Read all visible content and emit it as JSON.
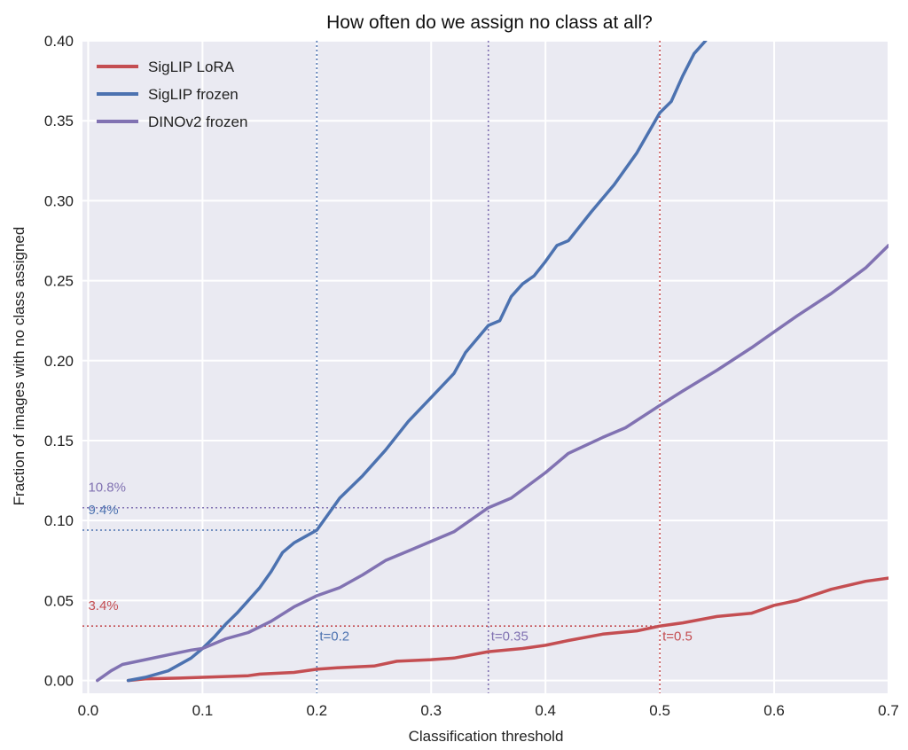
{
  "chart_data": {
    "type": "line",
    "title": "How often do we assign no class at all?",
    "xlabel": "Classification threshold",
    "ylabel": "Fraction of images with no class assigned",
    "xlim": [
      -0.005,
      0.7
    ],
    "ylim": [
      -0.008,
      0.4
    ],
    "xticks": [
      0.0,
      0.1,
      0.2,
      0.3,
      0.4,
      0.5,
      0.6,
      0.7
    ],
    "xtick_labels": [
      "0.0",
      "0.1",
      "0.2",
      "0.3",
      "0.4",
      "0.5",
      "0.6",
      "0.7"
    ],
    "yticks": [
      0.0,
      0.05,
      0.1,
      0.15,
      0.2,
      0.25,
      0.3,
      0.35,
      0.4
    ],
    "ytick_labels": [
      "0.00",
      "0.05",
      "0.10",
      "0.15",
      "0.20",
      "0.25",
      "0.30",
      "0.35",
      "0.40"
    ],
    "grid": true,
    "legend_position": "top-left",
    "series": [
      {
        "name": "SigLIP LoRA",
        "color": "#c44e52",
        "points": [
          [
            0.035,
            0.0
          ],
          [
            0.05,
            0.001
          ],
          [
            0.08,
            0.0015
          ],
          [
            0.1,
            0.002
          ],
          [
            0.12,
            0.0025
          ],
          [
            0.14,
            0.003
          ],
          [
            0.15,
            0.004
          ],
          [
            0.18,
            0.005
          ],
          [
            0.2,
            0.007
          ],
          [
            0.22,
            0.008
          ],
          [
            0.25,
            0.009
          ],
          [
            0.27,
            0.012
          ],
          [
            0.3,
            0.013
          ],
          [
            0.32,
            0.014
          ],
          [
            0.35,
            0.018
          ],
          [
            0.38,
            0.02
          ],
          [
            0.4,
            0.022
          ],
          [
            0.42,
            0.025
          ],
          [
            0.45,
            0.029
          ],
          [
            0.48,
            0.031
          ],
          [
            0.5,
            0.034
          ],
          [
            0.52,
            0.036
          ],
          [
            0.55,
            0.04
          ],
          [
            0.58,
            0.042
          ],
          [
            0.6,
            0.047
          ],
          [
            0.62,
            0.05
          ],
          [
            0.65,
            0.057
          ],
          [
            0.68,
            0.062
          ],
          [
            0.7,
            0.064
          ]
        ]
      },
      {
        "name": "SigLIP frozen",
        "color": "#4c72b0",
        "points": [
          [
            0.035,
            0.0
          ],
          [
            0.05,
            0.002
          ],
          [
            0.07,
            0.006
          ],
          [
            0.09,
            0.014
          ],
          [
            0.1,
            0.02
          ],
          [
            0.11,
            0.027
          ],
          [
            0.12,
            0.035
          ],
          [
            0.13,
            0.042
          ],
          [
            0.14,
            0.05
          ],
          [
            0.15,
            0.058
          ],
          [
            0.16,
            0.068
          ],
          [
            0.17,
            0.08
          ],
          [
            0.18,
            0.086
          ],
          [
            0.19,
            0.09
          ],
          [
            0.2,
            0.094
          ],
          [
            0.21,
            0.104
          ],
          [
            0.22,
            0.114
          ],
          [
            0.24,
            0.128
          ],
          [
            0.26,
            0.144
          ],
          [
            0.28,
            0.162
          ],
          [
            0.3,
            0.177
          ],
          [
            0.32,
            0.192
          ],
          [
            0.33,
            0.205
          ],
          [
            0.35,
            0.222
          ],
          [
            0.36,
            0.225
          ],
          [
            0.37,
            0.24
          ],
          [
            0.38,
            0.248
          ],
          [
            0.39,
            0.253
          ],
          [
            0.4,
            0.262
          ],
          [
            0.41,
            0.272
          ],
          [
            0.42,
            0.275
          ],
          [
            0.44,
            0.293
          ],
          [
            0.46,
            0.31
          ],
          [
            0.48,
            0.33
          ],
          [
            0.5,
            0.355
          ],
          [
            0.51,
            0.362
          ],
          [
            0.52,
            0.378
          ],
          [
            0.53,
            0.392
          ],
          [
            0.54,
            0.4
          ]
        ]
      },
      {
        "name": "DINOv2 frozen",
        "color": "#8172b2",
        "points": [
          [
            0.008,
            0.0
          ],
          [
            0.02,
            0.006
          ],
          [
            0.03,
            0.01
          ],
          [
            0.05,
            0.013
          ],
          [
            0.07,
            0.016
          ],
          [
            0.09,
            0.019
          ],
          [
            0.1,
            0.02
          ],
          [
            0.12,
            0.026
          ],
          [
            0.14,
            0.03
          ],
          [
            0.16,
            0.037
          ],
          [
            0.18,
            0.046
          ],
          [
            0.2,
            0.053
          ],
          [
            0.22,
            0.058
          ],
          [
            0.24,
            0.066
          ],
          [
            0.26,
            0.075
          ],
          [
            0.28,
            0.081
          ],
          [
            0.3,
            0.087
          ],
          [
            0.32,
            0.093
          ],
          [
            0.35,
            0.108
          ],
          [
            0.37,
            0.114
          ],
          [
            0.4,
            0.13
          ],
          [
            0.42,
            0.142
          ],
          [
            0.45,
            0.152
          ],
          [
            0.47,
            0.158
          ],
          [
            0.5,
            0.172
          ],
          [
            0.52,
            0.181
          ],
          [
            0.55,
            0.194
          ],
          [
            0.58,
            0.208
          ],
          [
            0.6,
            0.218
          ],
          [
            0.62,
            0.228
          ],
          [
            0.65,
            0.242
          ],
          [
            0.68,
            0.258
          ],
          [
            0.7,
            0.272
          ]
        ]
      }
    ],
    "reference_lines": [
      {
        "orientation": "vertical",
        "x": 0.2,
        "from_y": -0.008,
        "to_y": 0.4,
        "color": "#4c72b0",
        "label": "t=0.2",
        "label_x": 0.2,
        "label_y": 0.025
      },
      {
        "orientation": "vertical",
        "x": 0.35,
        "from_y": -0.008,
        "to_y": 0.4,
        "color": "#8172b2",
        "label": "t=0.35",
        "label_x": 0.35,
        "label_y": 0.025
      },
      {
        "orientation": "vertical",
        "x": 0.5,
        "from_y": -0.008,
        "to_y": 0.4,
        "color": "#c44e52",
        "label": "t=0.5",
        "label_x": 0.5,
        "label_y": 0.025
      },
      {
        "orientation": "horizontal",
        "y": 0.108,
        "from_x": -0.005,
        "to_x": 0.35,
        "color": "#8172b2",
        "label": "10.8%",
        "label_x": 0.0,
        "label_y": 0.118
      },
      {
        "orientation": "horizontal",
        "y": 0.094,
        "from_x": -0.005,
        "to_x": 0.2,
        "color": "#4c72b0",
        "label": "9.4%",
        "label_x": 0.0,
        "label_y": 0.104
      },
      {
        "orientation": "horizontal",
        "y": 0.034,
        "from_x": -0.005,
        "to_x": 0.5,
        "color": "#c44e52",
        "label": "3.4%",
        "label_x": 0.0,
        "label_y": 0.044
      }
    ],
    "colors": {
      "plot_background": "#eaeaf2",
      "grid": "#ffffff"
    }
  }
}
